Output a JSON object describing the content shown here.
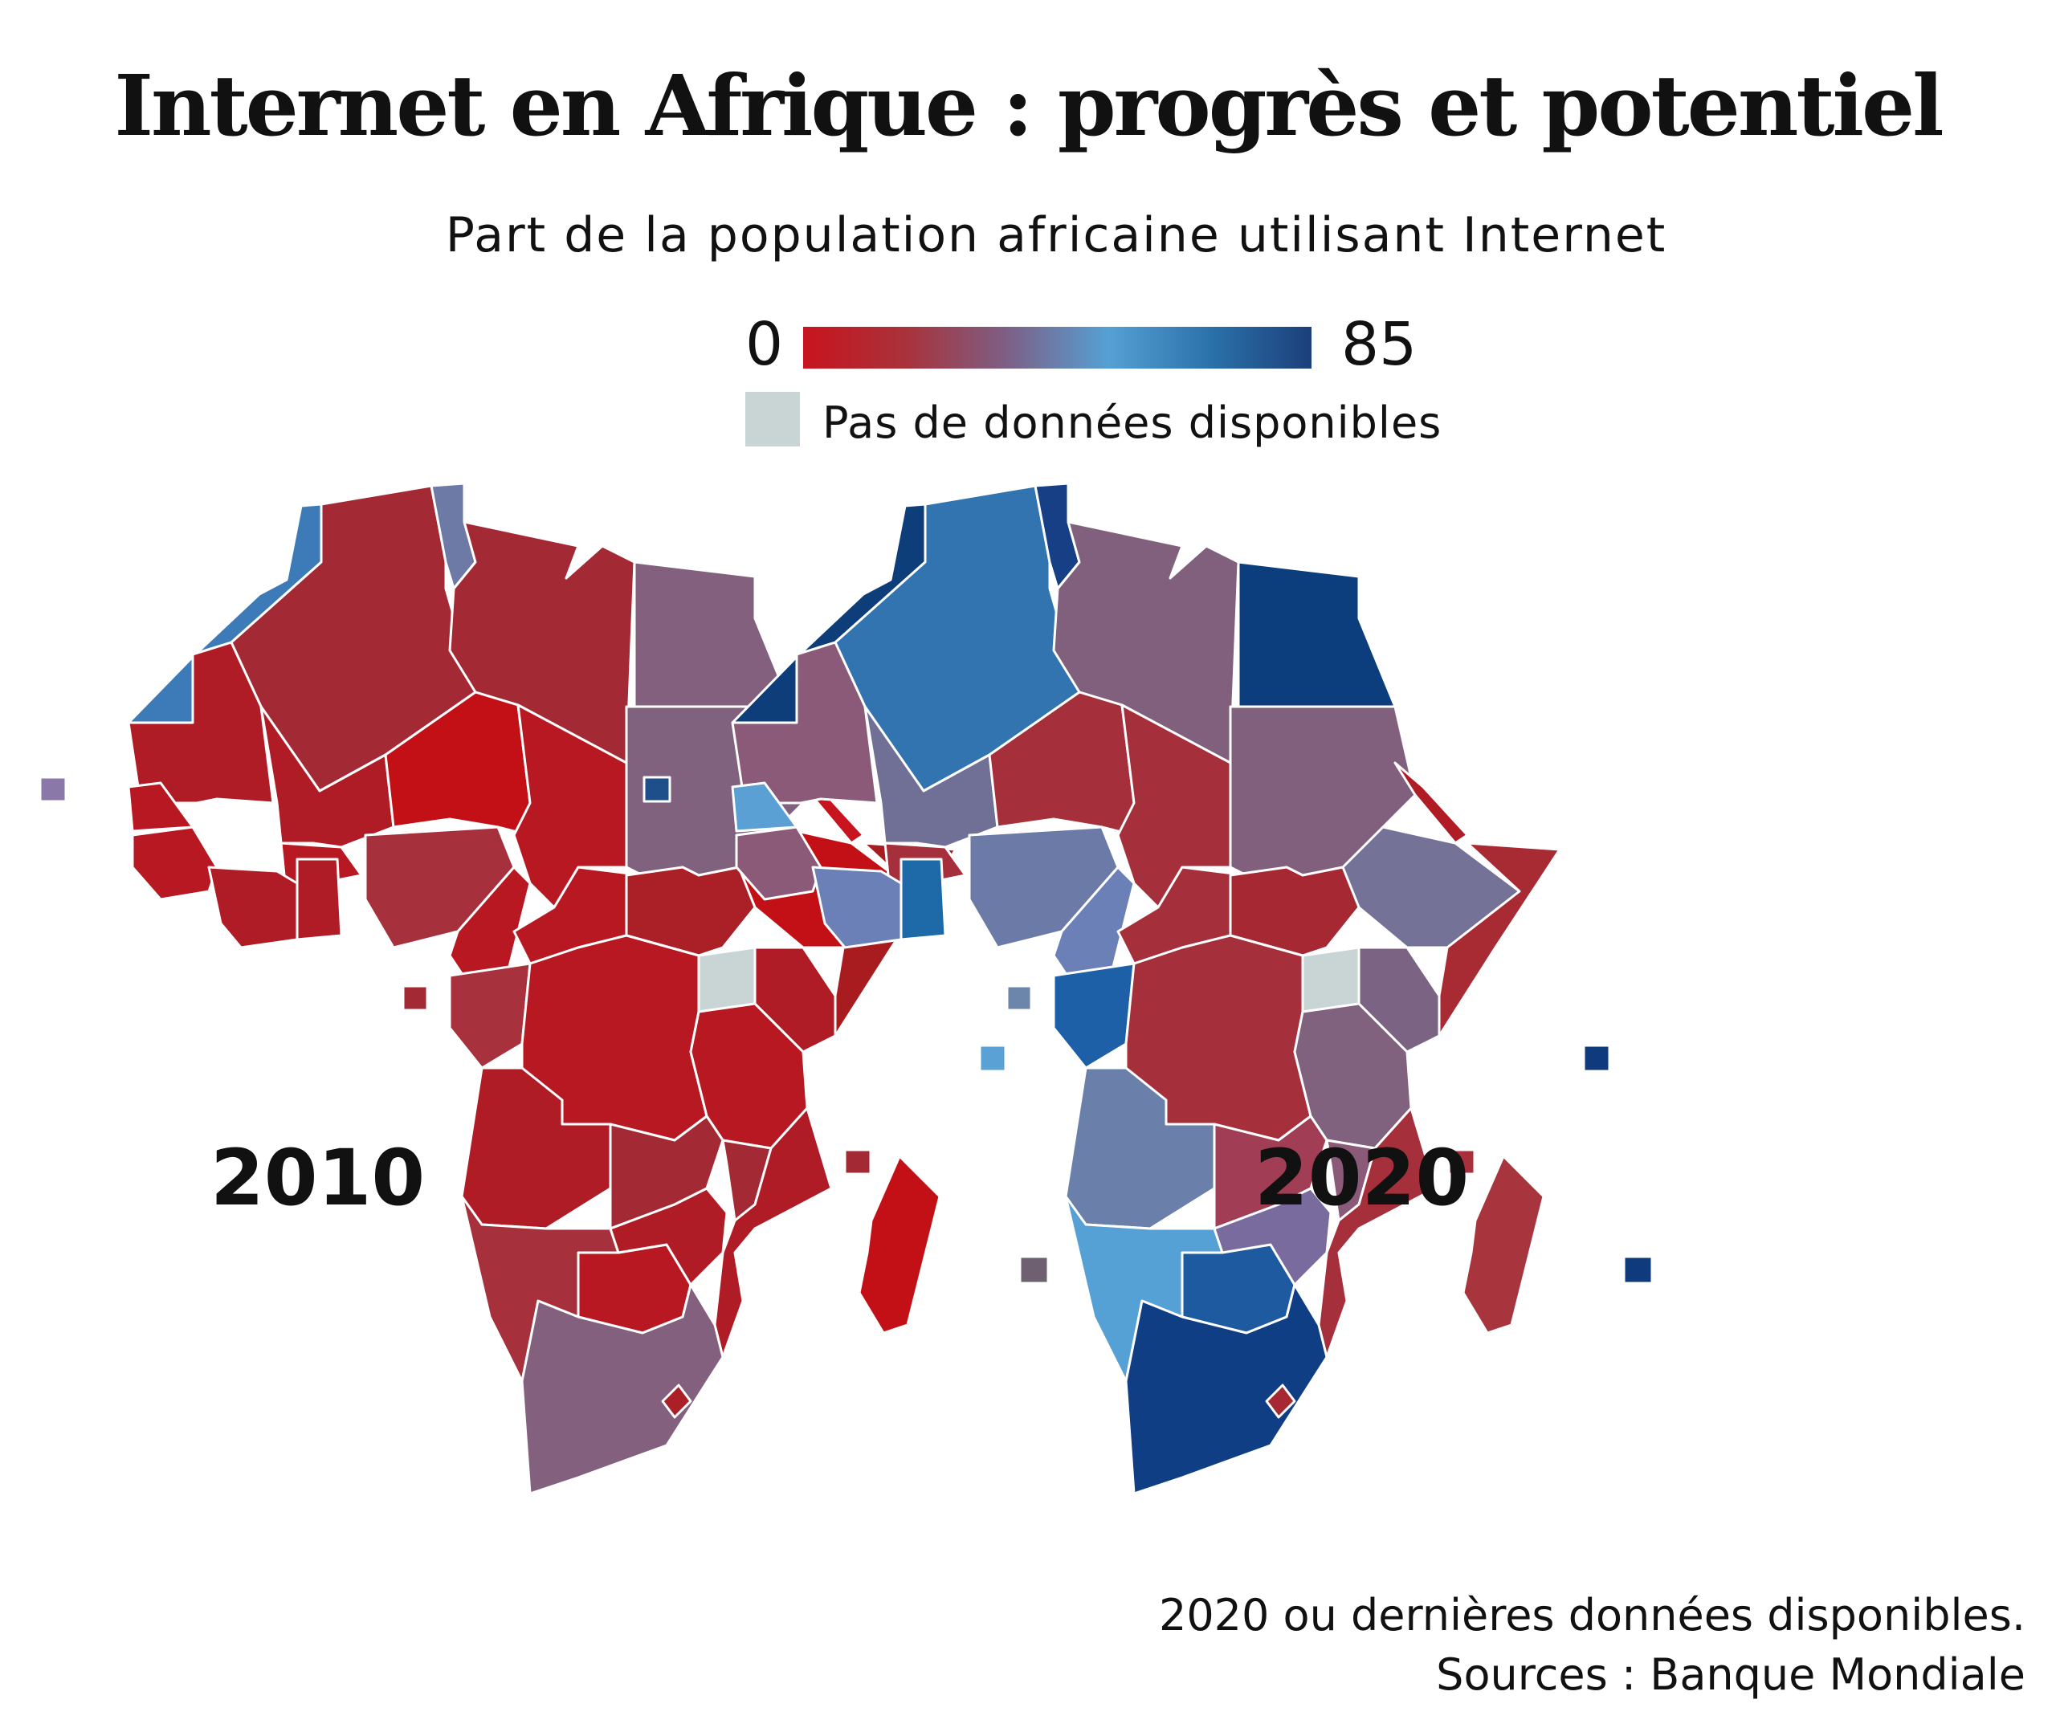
{
  "header": {
    "title": "Internet en Afrique : progrès et potentiel",
    "subtitle": "Part de la population africaine utilisant Internet"
  },
  "legend": {
    "min_label": "0",
    "max_label": "85",
    "min_value": 0,
    "max_value": 85,
    "colors": [
      "#c8141e",
      "#a9323a",
      "#7d5f85",
      "#55a0d4",
      "#2b72aa",
      "#1c3f7a"
    ],
    "no_data_color": "#c9d5d5",
    "no_data_label": "Pas de données disponibles"
  },
  "maps": [
    {
      "year_label": "2010",
      "regions": [
        {
          "id": "maroc",
          "color": "#3d7ab8"
        },
        {
          "id": "algerie",
          "color": "#a32a35"
        },
        {
          "id": "tunisie",
          "color": "#6e7aa6"
        },
        {
          "id": "libye",
          "color": "#a32a35"
        },
        {
          "id": "egypte",
          "color": "#83607e"
        },
        {
          "id": "mauritanie",
          "color": "#b01c26"
        },
        {
          "id": "mali",
          "color": "#b01c26"
        },
        {
          "id": "niger",
          "color": "#c21016"
        },
        {
          "id": "tchad",
          "color": "#b81821"
        },
        {
          "id": "soudan",
          "color": "#80627f"
        },
        {
          "id": "erythree",
          "color": "#c8141e"
        },
        {
          "id": "ethiopie",
          "color": "#c21016"
        },
        {
          "id": "somalie",
          "color": "#a81c20"
        },
        {
          "id": "senegal",
          "color": "#b81821"
        },
        {
          "id": "guinee",
          "color": "#b81821"
        },
        {
          "id": "burkina",
          "color": "#b81821"
        },
        {
          "id": "cote_ivoire",
          "color": "#b01c26"
        },
        {
          "id": "ghana",
          "color": "#b01c26"
        },
        {
          "id": "nigeria",
          "color": "#a6303c"
        },
        {
          "id": "cameroun",
          "color": "#b81821"
        },
        {
          "id": "centrafrique",
          "color": "#b81821"
        },
        {
          "id": "soudan_sud",
          "color": "#ab2027"
        },
        {
          "id": "ouganda",
          "color": "#c9d5d5"
        },
        {
          "id": "kenya",
          "color": "#b01c26"
        },
        {
          "id": "gabon_congo",
          "color": "#a8313e"
        },
        {
          "id": "rdc",
          "color": "#b81821"
        },
        {
          "id": "tanzanie",
          "color": "#b81821"
        },
        {
          "id": "angola",
          "color": "#b01c26"
        },
        {
          "id": "zambie",
          "color": "#a32a35"
        },
        {
          "id": "malawi",
          "color": "#a32a35"
        },
        {
          "id": "mozambique",
          "color": "#b01c26"
        },
        {
          "id": "namibie",
          "color": "#a6303c"
        },
        {
          "id": "botswana",
          "color": "#b81821"
        },
        {
          "id": "zimbabwe",
          "color": "#b01c26"
        },
        {
          "id": "afrique_sud",
          "color": "#83607e"
        },
        {
          "id": "madagascar",
          "color": "#c21016"
        },
        {
          "id": "cap_vert",
          "color": "#8a78a8"
        },
        {
          "id": "sao_tome",
          "color": "#a32a35"
        },
        {
          "id": "seychelles",
          "color": "#5aa1d6"
        },
        {
          "id": "comores",
          "color": "#a32a35"
        },
        {
          "id": "maurice",
          "color": "#6e6070"
        }
      ]
    },
    {
      "year_label": "2020",
      "regions": [
        {
          "id": "maroc",
          "color": "#0e3e7a"
        },
        {
          "id": "algerie",
          "color": "#3274b0"
        },
        {
          "id": "tunisie",
          "color": "#163f86"
        },
        {
          "id": "libye",
          "color": "#80607d"
        },
        {
          "id": "egypte",
          "color": "#0c3e7e"
        },
        {
          "id": "mauritanie",
          "color": "#8a5a78"
        },
        {
          "id": "mali",
          "color": "#707096"
        },
        {
          "id": "niger",
          "color": "#a52f3b"
        },
        {
          "id": "tchad",
          "color": "#a52f3b"
        },
        {
          "id": "soudan",
          "color": "#80607d"
        },
        {
          "id": "erythree",
          "color": "#b01c26"
        },
        {
          "id": "ethiopie",
          "color": "#747296"
        },
        {
          "id": "somalie",
          "color": "#a82a33"
        },
        {
          "id": "senegal",
          "color": "#5aa0d4"
        },
        {
          "id": "guinee",
          "color": "#8a5a78"
        },
        {
          "id": "burkina",
          "color": "#a52f3b"
        },
        {
          "id": "cote_ivoire",
          "color": "#6b80b6"
        },
        {
          "id": "ghana",
          "color": "#1e6aa8"
        },
        {
          "id": "nigeria",
          "color": "#6b7aa6"
        },
        {
          "id": "cameroun",
          "color": "#6b80b6"
        },
        {
          "id": "centrafrique",
          "color": "#a52f3b"
        },
        {
          "id": "soudan_sud",
          "color": "#a52832"
        },
        {
          "id": "ouganda",
          "color": "#c9d5d5"
        },
        {
          "id": "kenya",
          "color": "#7a6383"
        },
        {
          "id": "gabon_congo",
          "color": "#1d60a8"
        },
        {
          "id": "rdc",
          "color": "#a52f3b"
        },
        {
          "id": "tanzanie",
          "color": "#80627f"
        },
        {
          "id": "angola",
          "color": "#6a80aa"
        },
        {
          "id": "zambie",
          "color": "#a13e55"
        },
        {
          "id": "malawi",
          "color": "#8a5a78"
        },
        {
          "id": "mozambique",
          "color": "#a52f3b"
        },
        {
          "id": "namibie",
          "color": "#55a0d4"
        },
        {
          "id": "botswana",
          "color": "#1e5aa0"
        },
        {
          "id": "zimbabwe",
          "color": "#7a6b9e"
        },
        {
          "id": "afrique_sud",
          "color": "#103e84"
        },
        {
          "id": "madagascar",
          "color": "#a8343d"
        },
        {
          "id": "cap_vert",
          "color": "#1e4f8a"
        },
        {
          "id": "sao_tome",
          "color": "#6b86aa"
        },
        {
          "id": "seychelles",
          "color": "#0f3a7c"
        },
        {
          "id": "comores",
          "color": "#a8303c"
        },
        {
          "id": "maurice",
          "color": "#0f3a7c"
        }
      ]
    }
  ],
  "footnote": {
    "line1": "2020 ou dernières données disponibles.",
    "line2": "Sources : Banque Mondiale"
  }
}
